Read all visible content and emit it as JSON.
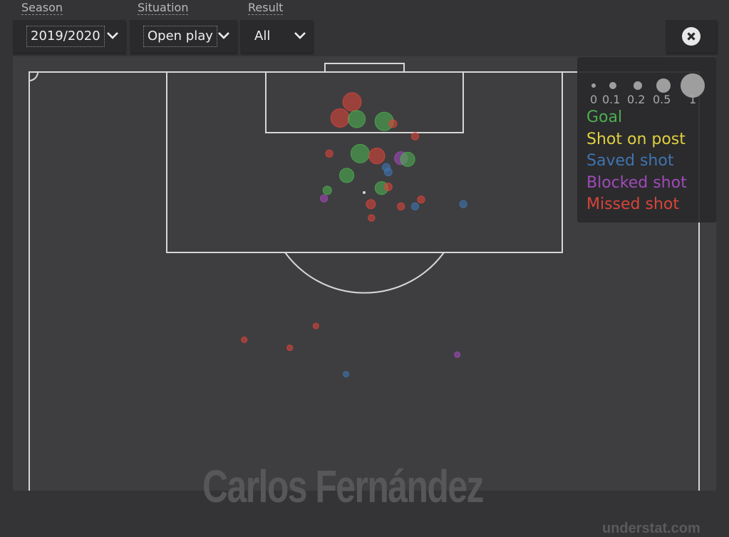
{
  "filters": {
    "season": {
      "label": "Season",
      "value": "2019/2020"
    },
    "situation": {
      "label": "Situation",
      "value": "Open play"
    },
    "result": {
      "label": "Result",
      "value": "All"
    }
  },
  "close_icon": "circle-x-icon",
  "watermark": {
    "player": "Carlos Fernández",
    "site": "understat.com"
  },
  "legend": {
    "sizes": [
      "0",
      "0.1",
      "0.2",
      "0.5",
      "1"
    ],
    "items": [
      {
        "label": "Goal",
        "color": "#4caf50"
      },
      {
        "label": "Shot on post",
        "color": "#e0d040"
      },
      {
        "label": "Saved shot",
        "color": "#3f74b0"
      },
      {
        "label": "Blocked shot",
        "color": "#a04ab8"
      },
      {
        "label": "Missed shot",
        "color": "#d9443a"
      }
    ]
  },
  "chart_data": {
    "type": "scatter",
    "size_encoding": "xG",
    "shots": [
      {
        "X": 0.974,
        "Y": 0.482,
        "xG": 0.65,
        "result": "Missed shot"
      },
      {
        "X": 0.96,
        "Y": 0.464,
        "xG": 0.65,
        "result": "Missed shot"
      },
      {
        "X": 0.959,
        "Y": 0.489,
        "xG": 0.57,
        "result": "Goal"
      },
      {
        "X": 0.957,
        "Y": 0.53,
        "xG": 0.65,
        "result": "Goal"
      },
      {
        "X": 0.955,
        "Y": 0.543,
        "xG": 0.12,
        "result": "Missed shot"
      },
      {
        "X": 0.944,
        "Y": 0.576,
        "xG": 0.1,
        "result": "Missed shot"
      },
      {
        "X": 0.929,
        "Y": 0.448,
        "xG": 0.1,
        "result": "Missed shot"
      },
      {
        "X": 0.929,
        "Y": 0.494,
        "xG": 0.65,
        "result": "Goal"
      },
      {
        "X": 0.927,
        "Y": 0.519,
        "xG": 0.5,
        "result": "Missed shot"
      },
      {
        "X": 0.925,
        "Y": 0.555,
        "xG": 0.35,
        "result": "Blocked shot"
      },
      {
        "X": 0.924,
        "Y": 0.565,
        "xG": 0.42,
        "result": "Goal"
      },
      {
        "X": 0.917,
        "Y": 0.533,
        "xG": 0.12,
        "result": "Saved shot"
      },
      {
        "X": 0.913,
        "Y": 0.536,
        "xG": 0.12,
        "result": "Saved shot"
      },
      {
        "X": 0.91,
        "Y": 0.474,
        "xG": 0.42,
        "result": "Goal"
      },
      {
        "X": 0.899,
        "Y": 0.526,
        "xG": 0.35,
        "result": "Goal"
      },
      {
        "X": 0.9,
        "Y": 0.536,
        "xG": 0.12,
        "result": "Missed shot"
      },
      {
        "X": 0.897,
        "Y": 0.445,
        "xG": 0.15,
        "result": "Goal"
      },
      {
        "X": 0.89,
        "Y": 0.44,
        "xG": 0.1,
        "result": "Blocked shot"
      },
      {
        "X": 0.885,
        "Y": 0.51,
        "xG": 0.18,
        "result": "Missed shot"
      },
      {
        "X": 0.883,
        "Y": 0.555,
        "xG": 0.1,
        "result": "Missed shot"
      },
      {
        "X": 0.889,
        "Y": 0.585,
        "xG": 0.1,
        "result": "Missed shot"
      },
      {
        "X": 0.883,
        "Y": 0.576,
        "xG": 0.1,
        "result": "Saved shot"
      },
      {
        "X": 0.885,
        "Y": 0.648,
        "xG": 0.1,
        "result": "Saved shot"
      },
      {
        "X": 0.873,
        "Y": 0.511,
        "xG": 0.08,
        "result": "Missed shot"
      },
      {
        "X": 0.779,
        "Y": 0.428,
        "xG": 0.05,
        "result": "Missed shot"
      },
      {
        "X": 0.767,
        "Y": 0.321,
        "xG": 0.05,
        "result": "Missed shot"
      },
      {
        "X": 0.76,
        "Y": 0.389,
        "xG": 0.05,
        "result": "Missed shot"
      },
      {
        "X": 0.754,
        "Y": 0.639,
        "xG": 0.05,
        "result": "Blocked shot"
      },
      {
        "X": 0.737,
        "Y": 0.473,
        "xG": 0.05,
        "result": "Saved shot"
      }
    ]
  }
}
